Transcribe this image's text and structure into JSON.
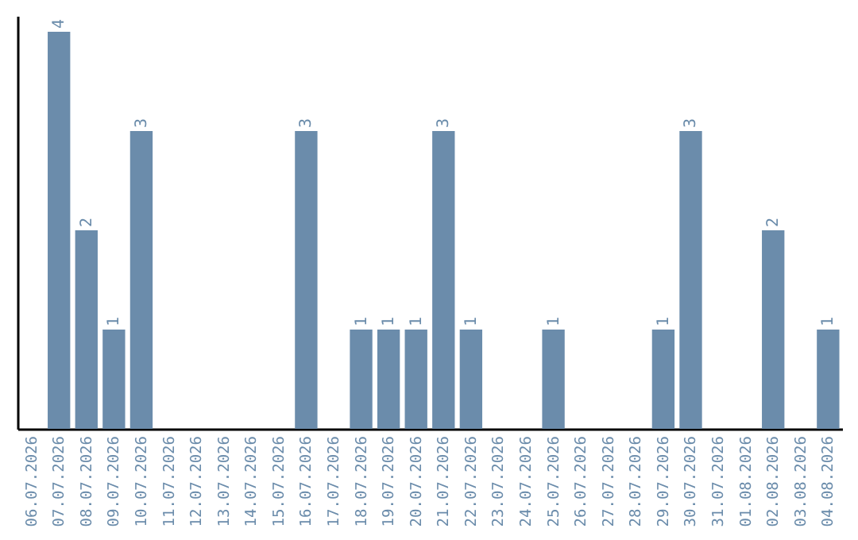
{
  "chart_data": {
    "type": "bar",
    "categories": [
      "06.07.2026",
      "07.07.2026",
      "08.07.2026",
      "09.07.2026",
      "10.07.2026",
      "11.07.2026",
      "12.07.2026",
      "13.07.2026",
      "14.07.2026",
      "15.07.2026",
      "16.07.2026",
      "17.07.2026",
      "18.07.2026",
      "19.07.2026",
      "20.07.2026",
      "21.07.2026",
      "22.07.2026",
      "23.07.2026",
      "24.07.2026",
      "25.07.2026",
      "26.07.2026",
      "27.07.2026",
      "28.07.2026",
      "29.07.2026",
      "30.07.2026",
      "31.07.2026",
      "01.08.2026",
      "02.08.2026",
      "03.08.2026",
      "04.08.2026"
    ],
    "values": [
      0,
      4,
      2,
      1,
      3,
      0,
      0,
      0,
      0,
      0,
      3,
      0,
      1,
      1,
      1,
      3,
      1,
      0,
      0,
      1,
      0,
      0,
      0,
      1,
      3,
      0,
      0,
      2,
      0,
      1
    ],
    "value_labels": [
      null,
      "4",
      "2",
      "1",
      "3",
      null,
      null,
      null,
      null,
      null,
      "3",
      null,
      "1",
      "1",
      "1",
      "3",
      "1",
      null,
      null,
      "1",
      null,
      null,
      null,
      "1",
      "3",
      null,
      null,
      "2",
      null,
      "1"
    ],
    "color": "#6b8cab",
    "grid": false
  }
}
